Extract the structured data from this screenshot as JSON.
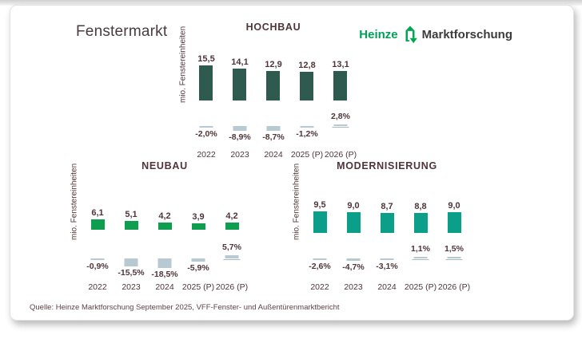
{
  "page_title": "Fenstermarkt",
  "logo": {
    "brand": "Heinze",
    "suffix": "Marktforschung",
    "icon": "house-recycle-arrows-icon",
    "brand_color": "#00a05a",
    "suffix_color": "#3c3c3b"
  },
  "source": "Quelle: Heinze Marktforschung September 2025, VFF-Fenster- und Außentürenmarktbericht",
  "colors": {
    "label_text": "#4f353a",
    "pct_bar": "#b9c9d1",
    "pct_baseline": "#a7b8c0",
    "card_border": "#e2e2e2"
  },
  "chart_data": [
    {
      "type": "bar",
      "title": "HOCHBAU",
      "ylabel": "mio. Fenstereinheiten",
      "categories": [
        "2022",
        "2023",
        "2024",
        "2025 (P)",
        "2026 (P)"
      ],
      "series": [
        {
          "name": "mio. Fenstereinheiten",
          "values": [
            15.5,
            14.1,
            12.9,
            12.8,
            13.1
          ]
        },
        {
          "name": "Veränderung in %",
          "values": [
            -2.0,
            -8.9,
            -8.7,
            -1.2,
            2.8
          ]
        }
      ],
      "value_labels": [
        "15,5",
        "14,1",
        "12,9",
        "12,8",
        "13,1"
      ],
      "pct_labels": [
        "-2,0%",
        "-8,9%",
        "-8,7%",
        "-1,2%",
        "2,8%"
      ],
      "bar_color": "#2e5a50",
      "ylim": [
        0,
        16
      ],
      "grid": false,
      "legend": "none"
    },
    {
      "type": "bar",
      "title": "NEUBAU",
      "ylabel": "mio. Fenstereinheiten",
      "categories": [
        "2022",
        "2023",
        "2024",
        "2025 (P)",
        "2026 (P)"
      ],
      "series": [
        {
          "name": "mio. Fenstereinheiten",
          "values": [
            6.1,
            5.1,
            4.2,
            3.9,
            4.2
          ]
        },
        {
          "name": "Veränderung in %",
          "values": [
            -0.9,
            -15.5,
            -18.5,
            -5.9,
            5.7
          ]
        }
      ],
      "value_labels": [
        "6,1",
        "5,1",
        "4,2",
        "3,9",
        "4,2"
      ],
      "pct_labels": [
        "-0,9%",
        "-15,5%",
        "-18,5%",
        "-5,9%",
        "5,7%"
      ],
      "bar_color": "#0f9d4f",
      "ylim": [
        0,
        7
      ],
      "grid": false,
      "legend": "none"
    },
    {
      "type": "bar",
      "title": "MODERNISIERUNG",
      "ylabel": "mio. Fenstereinheiten",
      "categories": [
        "2022",
        "2023",
        "2024",
        "2025 (P)",
        "2026 (P)"
      ],
      "series": [
        {
          "name": "mio. Fenstereinheiten",
          "values": [
            9.5,
            9.0,
            8.7,
            8.8,
            9.0
          ]
        },
        {
          "name": "Veränderung in %",
          "values": [
            -2.6,
            -4.7,
            -3.1,
            1.1,
            1.5
          ]
        }
      ],
      "value_labels": [
        "9,5",
        "9,0",
        "8,7",
        "8,8",
        "9,0"
      ],
      "pct_labels": [
        "-2,6%",
        "-4,7%",
        "-3,1%",
        "1,1%",
        "1,5%"
      ],
      "bar_color": "#0b9e88",
      "ylim": [
        0,
        10
      ],
      "grid": false,
      "legend": "none"
    }
  ]
}
